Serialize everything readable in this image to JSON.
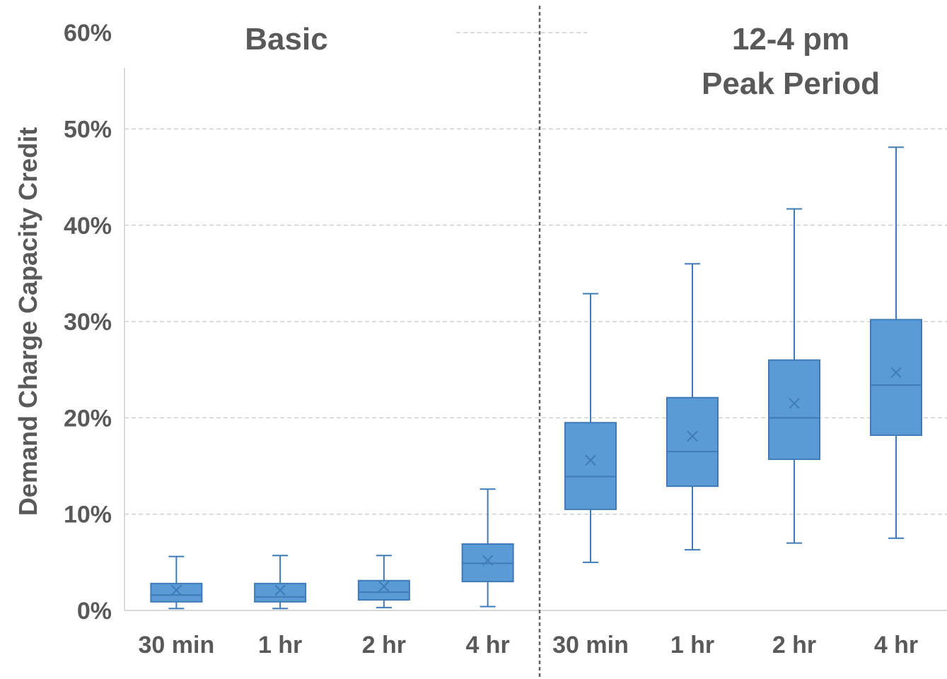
{
  "chart_data": {
    "type": "box",
    "ylabel": "Demand Charge Capacity Credit",
    "xlabel": "",
    "ylim": [
      0,
      0.6
    ],
    "yticks": [
      "0%",
      "10%",
      "20%",
      "30%",
      "40%",
      "50%",
      "60%"
    ],
    "grid": true,
    "groups": [
      {
        "title_lines": [
          "Basic"
        ],
        "categories": [
          "30 min",
          "1 hr",
          "2 hr",
          "4 hr"
        ],
        "boxes": [
          {
            "min": 0.002,
            "q1": 0.009,
            "median": 0.016,
            "q3": 0.028,
            "max": 0.056,
            "mean": 0.021
          },
          {
            "min": 0.002,
            "q1": 0.009,
            "median": 0.014,
            "q3": 0.028,
            "max": 0.057,
            "mean": 0.021
          },
          {
            "min": 0.003,
            "q1": 0.011,
            "median": 0.019,
            "q3": 0.031,
            "max": 0.057,
            "mean": 0.025
          },
          {
            "min": 0.004,
            "q1": 0.03,
            "median": 0.049,
            "q3": 0.069,
            "max": 0.126,
            "mean": 0.052
          }
        ]
      },
      {
        "title_lines": [
          "12-4 pm",
          "Peak Period"
        ],
        "categories": [
          "30 min",
          "1 hr",
          "2 hr",
          "4 hr"
        ],
        "boxes": [
          {
            "min": 0.05,
            "q1": 0.105,
            "median": 0.139,
            "q3": 0.195,
            "max": 0.329,
            "mean": 0.156
          },
          {
            "min": 0.063,
            "q1": 0.129,
            "median": 0.165,
            "q3": 0.221,
            "max": 0.36,
            "mean": 0.181
          },
          {
            "min": 0.07,
            "q1": 0.157,
            "median": 0.2,
            "q3": 0.26,
            "max": 0.417,
            "mean": 0.215
          },
          {
            "min": 0.075,
            "q1": 0.182,
            "median": 0.234,
            "q3": 0.302,
            "max": 0.481,
            "mean": 0.247
          }
        ]
      }
    ],
    "colors": {
      "box_fill": "#5b9bd5",
      "box_stroke": "#3f7bb8",
      "whisker": "#3f7bb8",
      "grid": "#d0d0d0",
      "axis": "#d9d9d9",
      "divider": "#606060",
      "text": "#595959"
    }
  }
}
